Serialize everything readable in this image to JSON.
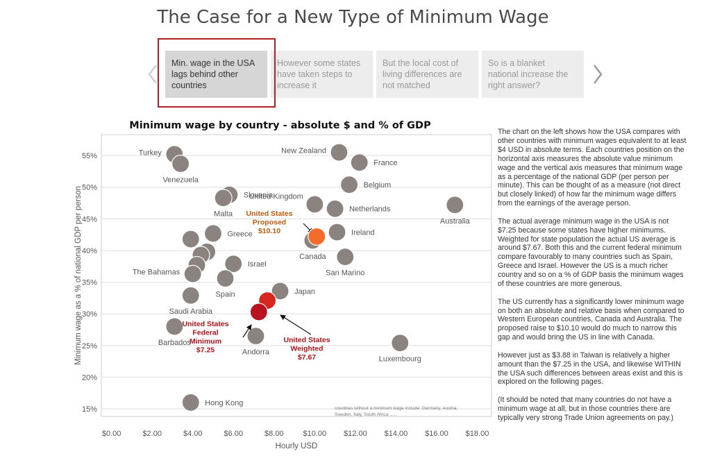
{
  "page": {
    "title": "The Case for a New Type of Minimum Wage"
  },
  "storypoints": {
    "items": [
      {
        "label": "Min. wage in the USA lags behind other countries",
        "active": true
      },
      {
        "label": "However some states have taken steps to increase it",
        "active": false
      },
      {
        "label": "But the local cost of living differences are not matched",
        "active": false
      },
      {
        "label": "So is a blanket national increase the right answer?",
        "active": false
      }
    ],
    "prev_icon": "chevron-left-icon",
    "next_icon": "chevron-right-icon"
  },
  "colors": {
    "point": "#8a8380",
    "point_stroke": "#ffffff",
    "proposed": "#f26d2d",
    "weighted": "#d7261e",
    "federal": "#b7141f",
    "proposed_label": "#c05a10",
    "red_label": "#b0141c",
    "grid": "#dddddd",
    "axis": "#cccccc",
    "active_frame": "#b22222"
  },
  "chart_data": {
    "type": "scatter",
    "title": "Minimum wage by country - absolute $ and % of GDP",
    "xlabel": "Hourly USD",
    "ylabel": "Minimum wage as a % of national GDP per person",
    "xlim": [
      -0.5,
      18.7
    ],
    "ylim": [
      13.8,
      58.3
    ],
    "xticks": [
      0,
      2,
      4,
      6,
      8,
      10,
      12,
      14,
      16,
      18
    ],
    "xtick_labels": [
      "$0.00",
      "$2.00",
      "$4.00",
      "$6.00",
      "$8.00",
      "$10.00",
      "$12.00",
      "$14.00",
      "$16.00",
      "$18.00"
    ],
    "yticks": [
      15,
      20,
      25,
      30,
      35,
      40,
      45,
      50,
      55
    ],
    "ytick_labels": [
      "15%",
      "20%",
      "25%",
      "30%",
      "35%",
      "40%",
      "45%",
      "50%",
      "55%"
    ],
    "grid": true,
    "footnote": "countries without a minimum wage include: Germany, Austria, Sweden, Italy, South Africa ......",
    "points": [
      {
        "name": "Turkey",
        "x": 3.1,
        "y": 55.2,
        "label": "Turkey",
        "label_pos": "left"
      },
      {
        "name": "Venezuela",
        "x": 3.4,
        "y": 53.7,
        "label": "Venezuela",
        "label_pos": "below"
      },
      {
        "name": "New Zealand",
        "x": 11.2,
        "y": 55.5,
        "label": "New Zealand",
        "label_pos": "left"
      },
      {
        "name": "France",
        "x": 12.2,
        "y": 53.9,
        "label": "France",
        "label_pos": "right"
      },
      {
        "name": "Slovenia",
        "x": 5.8,
        "y": 48.8,
        "label": "Slovenia",
        "label_pos": "right"
      },
      {
        "name": "Malta",
        "x": 5.5,
        "y": 48.3,
        "label": "Malta",
        "label_pos": "below"
      },
      {
        "name": "United Kingdom",
        "x": 10.0,
        "y": 47.3,
        "label": "United Kingdom",
        "label_pos": "upper-left"
      },
      {
        "name": "Belgium",
        "x": 11.7,
        "y": 50.4,
        "label": "Belgium",
        "label_pos": "right"
      },
      {
        "name": "Netherlands",
        "x": 11.0,
        "y": 46.6,
        "label": "Netherlands",
        "label_pos": "right"
      },
      {
        "name": "Australia",
        "x": 16.9,
        "y": 47.2,
        "label": "Australia",
        "label_pos": "below"
      },
      {
        "name": "Ireland",
        "x": 11.1,
        "y": 42.9,
        "label": "Ireland",
        "label_pos": "right"
      },
      {
        "name": "Canada",
        "x": 9.9,
        "y": 41.6,
        "label": "Canada",
        "label_pos": "below"
      },
      {
        "name": "San Marino",
        "x": 11.5,
        "y": 39.0,
        "label": "San Marino",
        "label_pos": "below"
      },
      {
        "name": "Greece",
        "x": 5.0,
        "y": 42.7,
        "label": "Greece",
        "label_pos": "right"
      },
      {
        "name": "Unlabeled A",
        "x": 3.9,
        "y": 41.8,
        "label": "",
        "label_pos": "none"
      },
      {
        "name": "Unlabeled B",
        "x": 4.7,
        "y": 39.8,
        "label": "",
        "label_pos": "none"
      },
      {
        "name": "Unlabeled C",
        "x": 4.4,
        "y": 39.3,
        "label": "",
        "label_pos": "none"
      },
      {
        "name": "Unlabeled D",
        "x": 4.2,
        "y": 37.7,
        "label": "",
        "label_pos": "none"
      },
      {
        "name": "The Bahamas",
        "x": 4.0,
        "y": 36.3,
        "label": "The Bahamas",
        "label_pos": "left"
      },
      {
        "name": "Israel",
        "x": 6.0,
        "y": 37.9,
        "label": "Israel",
        "label_pos": "right"
      },
      {
        "name": "Spain",
        "x": 5.6,
        "y": 35.6,
        "label": "Spain",
        "label_pos": "below"
      },
      {
        "name": "Japan",
        "x": 8.3,
        "y": 33.6,
        "label": "Japan",
        "label_pos": "right"
      },
      {
        "name": "Saudi Arabia",
        "x": 3.9,
        "y": 32.9,
        "label": "Saudi Arabia",
        "label_pos": "below"
      },
      {
        "name": "Barbados",
        "x": 3.1,
        "y": 28.0,
        "label": "Barbados",
        "label_pos": "below"
      },
      {
        "name": "Andorra",
        "x": 7.1,
        "y": 26.5,
        "label": "Andorra",
        "label_pos": "below"
      },
      {
        "name": "Luxembourg",
        "x": 14.2,
        "y": 25.4,
        "label": "Luxembourg",
        "label_pos": "below"
      },
      {
        "name": "Hong Kong",
        "x": 3.9,
        "y": 16.0,
        "label": "Hong Kong",
        "label_pos": "right"
      }
    ],
    "highlights": [
      {
        "name": "United States Proposed",
        "x": 10.1,
        "y": 42.2,
        "label_lines": [
          "United States",
          "Proposed",
          "$10.10"
        ],
        "color_key": "proposed"
      },
      {
        "name": "United States Weighted",
        "x": 7.67,
        "y": 32.1,
        "label_lines": [
          "United States",
          "Weighted",
          "$7.67"
        ],
        "color_key": "weighted"
      },
      {
        "name": "United States Federal Minimum",
        "x": 7.25,
        "y": 30.3,
        "label_lines": [
          "United States",
          "Federal",
          "Minimum",
          "$7.25"
        ],
        "color_key": "federal"
      }
    ]
  },
  "sidebar": {
    "paragraphs": [
      "The chart on the left shows how the USA compares with other countries with minimum wages equivalent to at least $4 USD in absolute terms. Each countries position on the horizontal axis measures the absolute value minimum wage and the vertical axis measures that minimum wage as a percentage of the national GDP (per person per minute). This can be thought of as a measure (not direct but closely linked) of how far the minimum wage differs from the earnings of the average person.",
      "The actual average minimum wage in the USA is not $7.25 because some states have higher minimums. Weighted for state population the actual US average is around $7.67. Both this and the current federal minimum compare favourably to many countries such as Spain, Greece and Israel. However the US is a much richer country and so on a % of GDP basis the minimum wages of these countries are more generous.",
      "The US currently has a significantly lower minimum wage on both an absolute and relative basis when compared to Western European countries, Canada and Australia. The proposed raise to $10.10 would do much to narrow this gap and would bring the US in line with Canada.",
      "However just as $3.88 in Taiwan is relatively a higher amount than the $7.25 in the USA, and likewise WITHIN the USA such differences between areas exist and this is explored on the following pages.",
      "(It should be noted that many countries do not have a minimum wage at all, but in those countries there are typically very strong Trade Union agreements on pay.)"
    ]
  }
}
